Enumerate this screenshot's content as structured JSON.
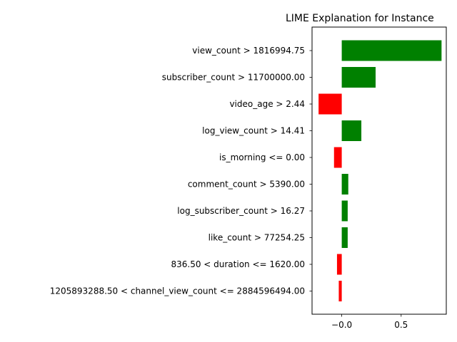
{
  "chart_data": {
    "type": "bar",
    "orientation": "horizontal",
    "title": "LIME Explanation for Instance",
    "categories": [
      "view_count > 1816994.75",
      "subscriber_count > 11700000.00",
      "video_age > 2.44",
      "log_view_count > 14.41",
      "is_morning <= 0.00",
      "comment_count > 5390.00",
      "log_subscriber_count > 16.27",
      "like_count > 77254.25",
      "836.50 < duration <= 1620.00",
      "1205893288.50 < channel_view_count <= 2884596494.00"
    ],
    "values": [
      0.84,
      0.285,
      -0.195,
      0.165,
      -0.065,
      0.055,
      0.05,
      0.05,
      -0.04,
      -0.025
    ],
    "xlim": [
      -0.25,
      0.88
    ],
    "xticks": [
      -0.0,
      0.5
    ],
    "xtick_labels": [
      "−0.0",
      "0.5"
    ],
    "grid": false,
    "positive_color": "#008000",
    "negative_color": "#ff0000"
  }
}
